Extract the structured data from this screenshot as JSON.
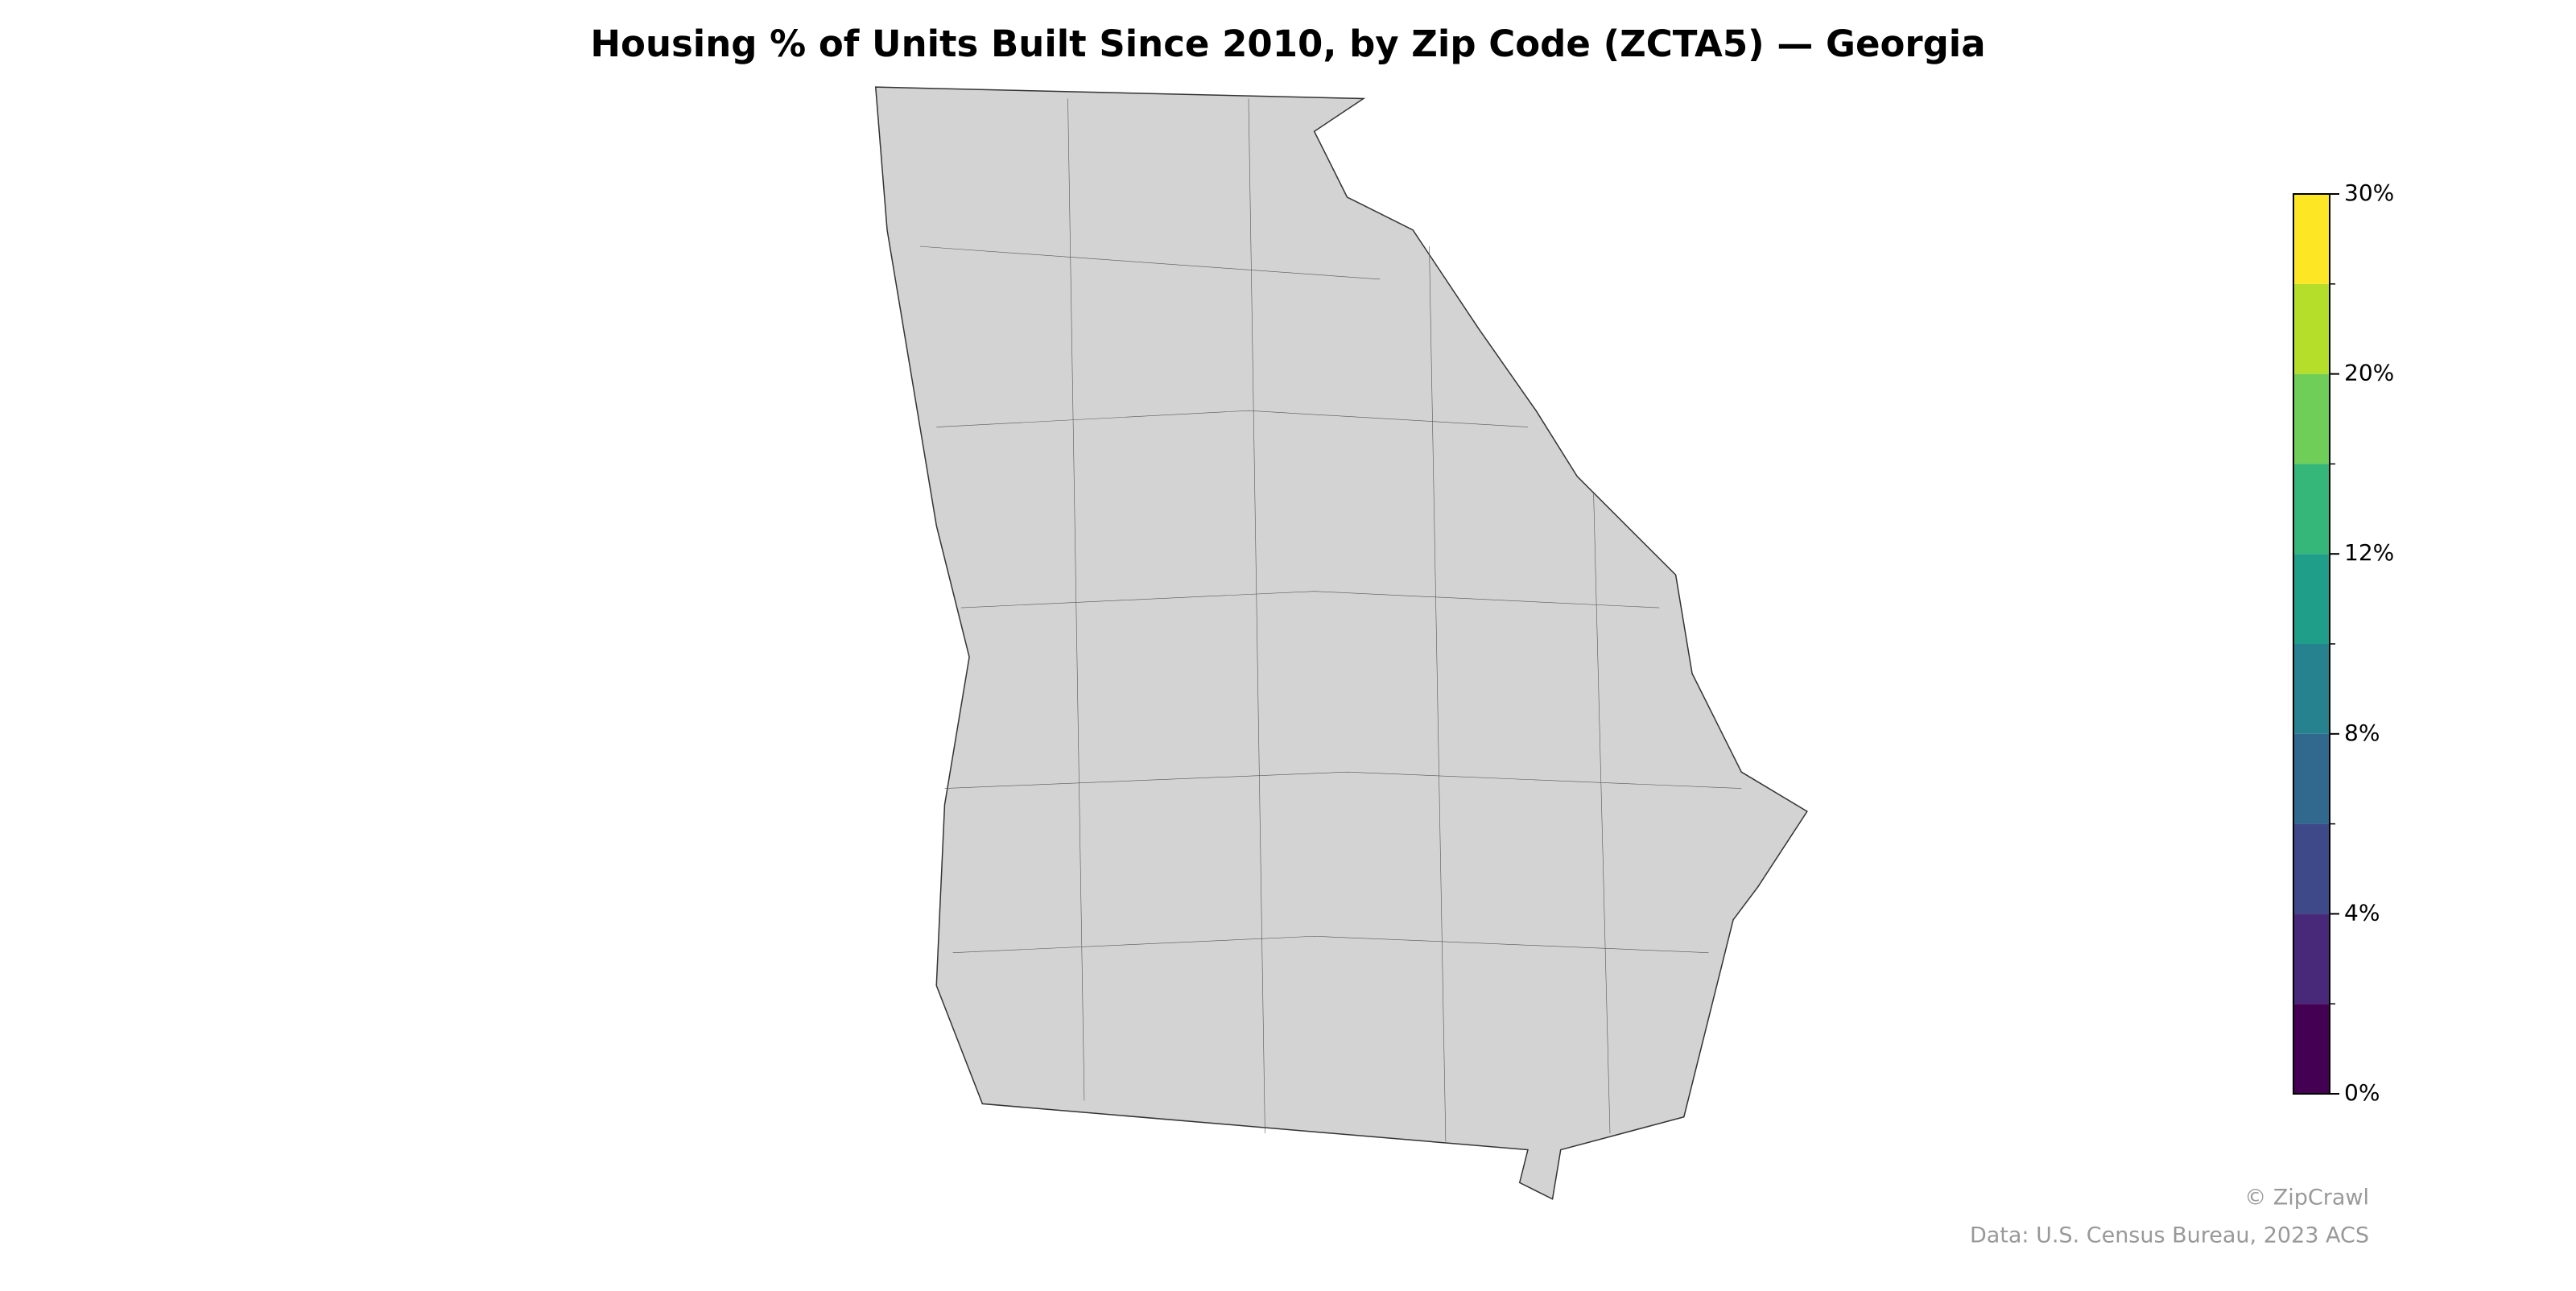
{
  "chart_data": {
    "type": "choropleth",
    "title": "Housing % of Units Built Since 2010, by Zip Code (ZCTA5) — Georgia",
    "colorbar": {
      "boundaries": [
        0,
        2,
        4,
        6,
        8,
        10,
        12,
        16,
        20,
        25,
        30
      ],
      "colors": [
        "#440154",
        "#482878",
        "#3e4989",
        "#31688e",
        "#26828e",
        "#1f9e89",
        "#35b779",
        "#6ece58",
        "#b5de2b",
        "#fde725"
      ],
      "ticks": [
        {
          "value": 0,
          "label": "0%"
        },
        {
          "value": 4,
          "label": "4%"
        },
        {
          "value": 8,
          "label": "8%"
        },
        {
          "value": 12,
          "label": "12%"
        },
        {
          "value": 20,
          "label": "20%"
        },
        {
          "value": 30,
          "label": "30%"
        }
      ]
    },
    "credit": "© ZipCrawl",
    "source": "Data: U.S. Census Bureau, 2023 ACS"
  }
}
